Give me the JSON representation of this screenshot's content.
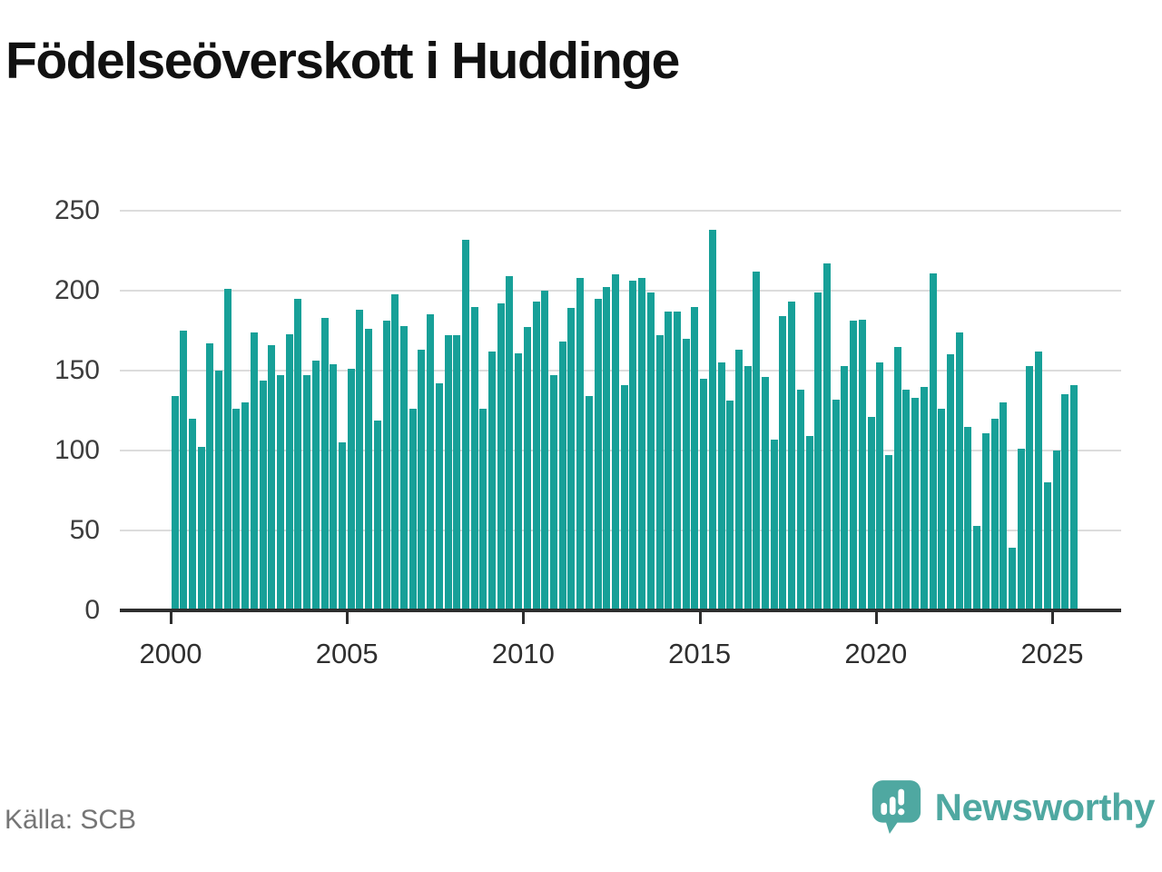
{
  "title": "Födelseöverskott i Huddinge",
  "source": "Källa: SCB",
  "branding": {
    "name": "Newsworthy",
    "color": "#4fa8a1",
    "icon": "newsworthy-speech-bubble-chart-icon"
  },
  "chart_data": {
    "type": "bar",
    "title": "Födelseöverskott i Huddinge",
    "xlabel": "",
    "ylabel": "",
    "ylim": [
      0,
      250
    ],
    "yticks": [
      0,
      50,
      100,
      150,
      200,
      250
    ],
    "xtick_labels": [
      "2000",
      "2005",
      "2010",
      "2015",
      "2020",
      "2025"
    ],
    "grid": "horizontal",
    "legend": "none",
    "bar_color": "#17a098",
    "categories": [
      "2000-K1",
      "2000-K2",
      "2000-K3",
      "2000-K4",
      "2001-K1",
      "2001-K2",
      "2001-K3",
      "2001-K4",
      "2002-K1",
      "2002-K2",
      "2002-K3",
      "2002-K4",
      "2003-K1",
      "2003-K2",
      "2003-K3",
      "2003-K4",
      "2004-K1",
      "2004-K2",
      "2004-K3",
      "2004-K4",
      "2005-K1",
      "2005-K2",
      "2005-K3",
      "2005-K4",
      "2006-K1",
      "2006-K2",
      "2006-K3",
      "2006-K4",
      "2007-K1",
      "2007-K2",
      "2007-K3",
      "2007-K4",
      "2008-K1",
      "2008-K2",
      "2008-K3",
      "2008-K4",
      "2009-K1",
      "2009-K2",
      "2009-K3",
      "2009-K4",
      "2010-K1",
      "2010-K2",
      "2010-K3",
      "2010-K4",
      "2011-K1",
      "2011-K2",
      "2011-K3",
      "2011-K4",
      "2012-K1",
      "2012-K2",
      "2012-K3",
      "2012-K4",
      "2013-K1",
      "2013-K2",
      "2013-K3",
      "2013-K4",
      "2014-K1",
      "2014-K2",
      "2014-K3",
      "2014-K4",
      "2015-K1",
      "2015-K2",
      "2015-K3",
      "2015-K4",
      "2016-K1",
      "2016-K2",
      "2016-K3",
      "2016-K4",
      "2017-K1",
      "2017-K2",
      "2017-K3",
      "2017-K4",
      "2018-K1",
      "2018-K2",
      "2018-K3",
      "2018-K4",
      "2019-K1",
      "2019-K2",
      "2019-K3",
      "2019-K4",
      "2020-K1",
      "2020-K2",
      "2020-K3",
      "2020-K4",
      "2021-K1",
      "2021-K2",
      "2021-K3",
      "2021-K4",
      "2022-K1",
      "2022-K2",
      "2022-K3",
      "2022-K4",
      "2023-K1",
      "2023-K2",
      "2023-K3",
      "2023-K4",
      "2024-K1",
      "2024-K2",
      "2024-K3",
      "2024-K4",
      "2025-K1",
      "2025-K2",
      "2025-K3"
    ],
    "values": [
      134,
      175,
      120,
      102,
      167,
      150,
      201,
      126,
      130,
      174,
      144,
      166,
      147,
      173,
      195,
      147,
      156,
      183,
      154,
      105,
      151,
      188,
      176,
      119,
      181,
      198,
      178,
      126,
      163,
      185,
      142,
      172,
      172,
      232,
      190,
      126,
      162,
      192,
      209,
      161,
      177,
      193,
      200,
      147,
      168,
      189,
      208,
      134,
      195,
      202,
      210,
      141,
      206,
      208,
      199,
      172,
      187,
      187,
      170,
      190,
      145,
      238,
      155,
      131,
      163,
      153,
      212,
      146,
      107,
      184,
      193,
      138,
      109,
      199,
      217,
      132,
      153,
      181,
      182,
      121,
      155,
      97,
      165,
      138,
      133,
      140,
      211,
      126,
      160,
      174,
      115,
      53,
      111,
      120,
      130,
      39,
      101,
      153,
      162,
      80,
      100,
      135,
      141
    ]
  }
}
